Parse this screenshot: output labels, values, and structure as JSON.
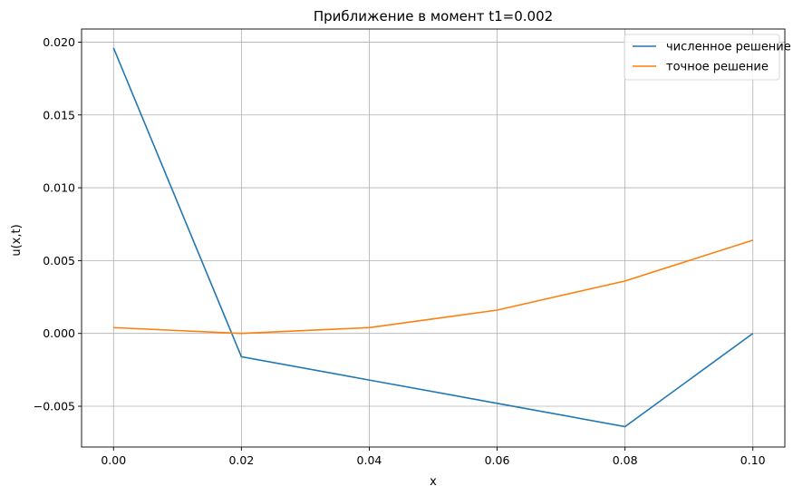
{
  "chart_data": {
    "type": "line",
    "title": "Приближение в момент t1=0.002",
    "xlabel": "x",
    "ylabel": "u(x,t)",
    "x": [
      0.0,
      0.02,
      0.04,
      0.06,
      0.08,
      0.1
    ],
    "series": [
      {
        "name": "численное решение",
        "color": "#1f77b4",
        "values": [
          0.0196,
          -0.0016,
          -0.0032,
          -0.0048,
          -0.0064,
          0.0
        ]
      },
      {
        "name": "точное решение",
        "color": "#ff7f0e",
        "values": [
          0.0004,
          0.0,
          0.0004,
          0.0016,
          0.0036,
          0.0064
        ]
      }
    ],
    "xlim": [
      -0.005,
      0.105
    ],
    "ylim": [
      -0.0078,
      0.0209
    ],
    "xticks": [
      0.0,
      0.02,
      0.04,
      0.06,
      0.08,
      0.1
    ],
    "xtick_labels": [
      "0.00",
      "0.02",
      "0.04",
      "0.06",
      "0.08",
      "0.10"
    ],
    "yticks": [
      -0.005,
      0.0,
      0.005,
      0.01,
      0.015,
      0.02
    ],
    "ytick_labels": [
      "−0.005",
      "0.000",
      "0.005",
      "0.010",
      "0.015",
      "0.020"
    ],
    "grid": true,
    "legend": "top-right"
  }
}
